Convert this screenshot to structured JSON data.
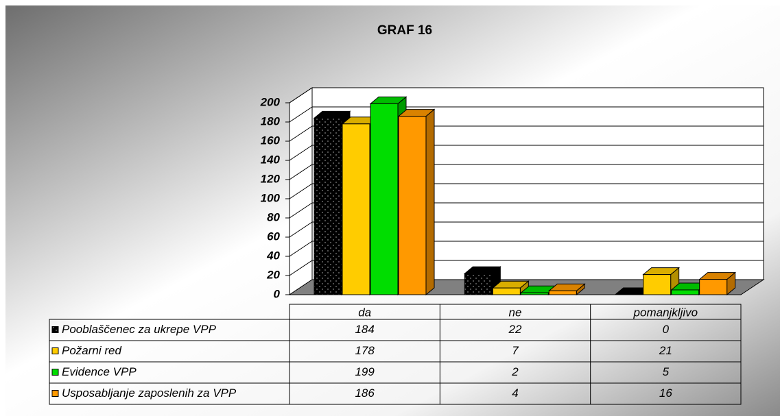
{
  "chart_data": {
    "type": "bar",
    "title": "GRAF 16",
    "categories": [
      "da",
      "ne",
      "pomanjkljivo"
    ],
    "series": [
      {
        "name": "Pooblaščenec za ukrepe VPP",
        "color": "#000000",
        "values": [
          184,
          22,
          0
        ]
      },
      {
        "name": "Požarni red",
        "color": "#ffcc00",
        "values": [
          178,
          7,
          21
        ]
      },
      {
        "name": "Evidence VPP",
        "color": "#00dd00",
        "values": [
          199,
          2,
          5
        ]
      },
      {
        "name": "Usposabljanje zaposlenih za VPP",
        "color": "#ff9900",
        "values": [
          186,
          4,
          16
        ]
      }
    ],
    "ylim": [
      0,
      200
    ],
    "yticks": [
      0,
      20,
      40,
      60,
      80,
      100,
      120,
      140,
      160,
      180,
      200
    ],
    "grid": true,
    "data_table": true
  }
}
